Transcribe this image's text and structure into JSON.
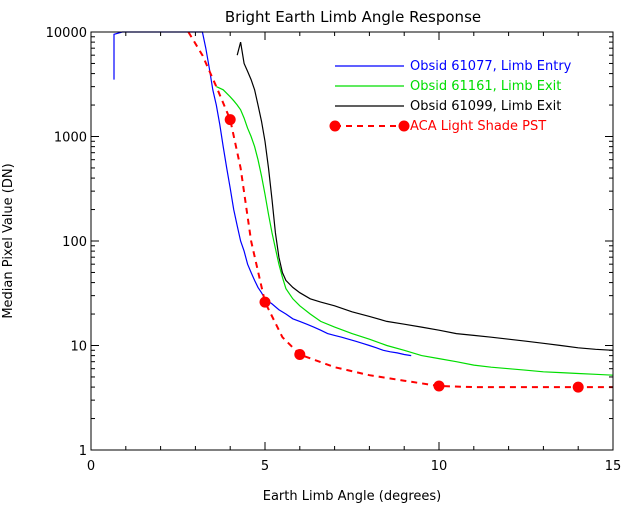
{
  "chart_data": {
    "type": "line",
    "title": "Bright Earth Limb Angle Response",
    "xlabel": "Earth Limb Angle (degrees)",
    "ylabel": "Median Pixel Value (DN)",
    "xlim": [
      0,
      15
    ],
    "ylim": [
      1,
      10000
    ],
    "yscale": "log",
    "x_ticks": [
      0,
      5,
      10,
      15
    ],
    "x_tick_labels": [
      "0",
      "5",
      "10",
      "15"
    ],
    "y_ticks": [
      1,
      10,
      100,
      1000,
      10000
    ],
    "y_tick_labels": [
      "1",
      "10",
      "100",
      "1000",
      "10000"
    ],
    "grid": false,
    "legend_position": "top-right",
    "series": [
      {
        "name": "Obsid 61077, Limb Entry",
        "color": "#0000ff",
        "style": "solid",
        "marker": "none",
        "x": [
          0.66,
          0.66,
          0.9,
          3.2,
          3.3,
          3.4,
          3.5,
          3.6,
          3.7,
          3.8,
          3.9,
          4.0,
          4.1,
          4.2,
          4.3,
          4.4,
          4.5,
          4.6,
          4.7,
          4.8,
          4.9,
          5.0,
          5.2,
          5.4,
          5.6,
          5.8,
          6.0,
          6.2,
          6.4,
          6.6,
          6.8,
          7.0,
          7.2,
          7.4,
          7.6,
          7.8,
          8.0,
          8.2,
          8.4,
          8.6,
          8.8,
          9.0,
          9.2
        ],
        "y": [
          3500,
          9500,
          10000,
          10000,
          7000,
          4500,
          2800,
          2000,
          1300,
          800,
          500,
          320,
          200,
          140,
          100,
          80,
          60,
          50,
          42,
          36,
          32,
          28,
          25,
          22,
          20,
          18,
          17,
          16,
          15,
          14,
          13,
          12.5,
          12,
          11.5,
          11,
          10.5,
          10,
          9.5,
          9,
          8.7,
          8.5,
          8.2,
          8
        ]
      },
      {
        "name": "Obsid 61161, Limb Exit",
        "color": "#00dd00",
        "style": "solid",
        "marker": "none",
        "x": [
          3.6,
          3.8,
          4.0,
          4.1,
          4.2,
          4.3,
          4.4,
          4.5,
          4.6,
          4.7,
          4.8,
          4.9,
          5.0,
          5.1,
          5.2,
          5.3,
          5.4,
          5.5,
          5.6,
          5.8,
          6.0,
          6.3,
          6.6,
          7.0,
          7.5,
          8.0,
          8.5,
          9.0,
          9.5,
          10.0,
          10.5,
          11.0,
          11.5,
          12.0,
          12.5,
          13.0,
          13.5,
          14.0,
          14.5,
          15.0
        ],
        "y": [
          3000,
          2800,
          2400,
          2200,
          2000,
          1800,
          1500,
          1200,
          1000,
          800,
          600,
          420,
          280,
          180,
          120,
          85,
          60,
          45,
          35,
          28,
          24,
          20,
          17,
          15,
          13,
          11.5,
          10,
          9,
          8,
          7.5,
          7,
          6.5,
          6.2,
          6,
          5.8,
          5.6,
          5.5,
          5.4,
          5.3,
          5.2
        ]
      },
      {
        "name": "Obsid 61099, Limb Exit",
        "color": "#000000",
        "style": "solid",
        "marker": "none",
        "x": [
          4.2,
          4.3,
          4.4,
          4.5,
          4.6,
          4.7,
          4.8,
          4.9,
          5.0,
          5.1,
          5.2,
          5.3,
          5.4,
          5.5,
          5.6,
          5.8,
          6.0,
          6.3,
          6.6,
          7.0,
          7.5,
          8.0,
          8.5,
          9.0,
          9.5,
          10.0,
          10.5,
          11.0,
          11.5,
          12.0,
          12.5,
          13.0,
          13.5,
          14.0,
          14.5,
          15.0
        ],
        "y": [
          6000,
          8000,
          5000,
          4200,
          3500,
          2800,
          2000,
          1400,
          900,
          500,
          250,
          120,
          70,
          50,
          42,
          36,
          32,
          28,
          26,
          24,
          21,
          19,
          17,
          16,
          15,
          14,
          13,
          12.5,
          12,
          11.5,
          11,
          10.5,
          10,
          9.5,
          9.2,
          9
        ]
      },
      {
        "name": "ACA Light Shade PST",
        "color": "#ff0000",
        "style": "dashed",
        "marker": "circle",
        "x": [
          2.8,
          3.2,
          3.6,
          4.0,
          4.3,
          4.6,
          5.0,
          5.5,
          6.0,
          7.0,
          8.0,
          9.0,
          10.0,
          11.0,
          12.0,
          13.0,
          14.0,
          15.0
        ],
        "y": [
          10000,
          6000,
          3000,
          1450,
          500,
          100,
          26,
          12,
          8.2,
          6.2,
          5.2,
          4.6,
          4.1,
          4.0,
          4.0,
          4.0,
          4.0,
          4.0
        ],
        "marker_points": [
          [
            4.0,
            1450
          ],
          [
            5.0,
            26
          ],
          [
            6.0,
            8.2
          ],
          [
            10.0,
            4.1
          ],
          [
            14.0,
            4.0
          ]
        ]
      }
    ]
  }
}
